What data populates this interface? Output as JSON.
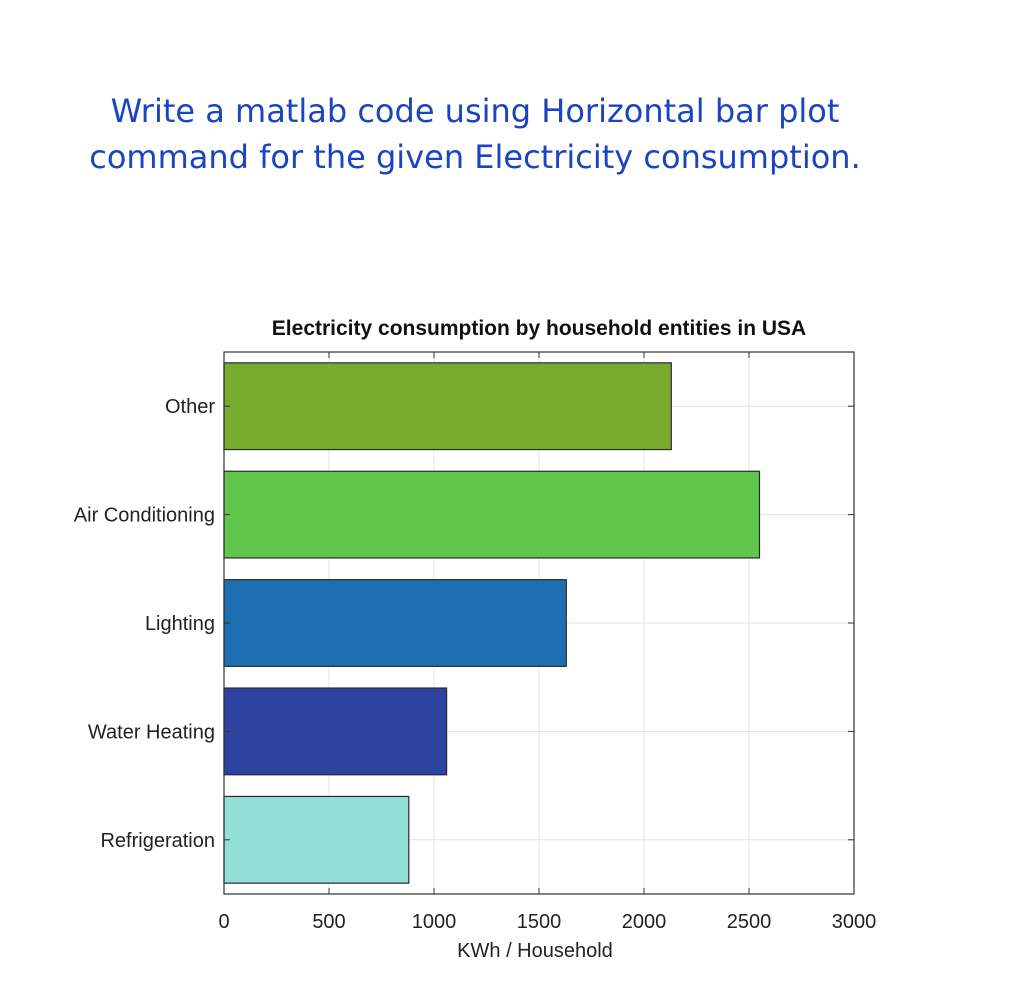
{
  "question": {
    "line1": "Write a matlab code using Horizontal bar plot",
    "line2": "command for the given Electricity consumption."
  },
  "chart_data": {
    "type": "bar",
    "orientation": "horizontal",
    "title": "Electricity consumption by household entities in USA",
    "xlabel": "KWh / Household",
    "ylabel": "",
    "categories": [
      "Refrigeration",
      "Water Heating",
      "Lighting",
      "Air Conditioning",
      "Other"
    ],
    "values": [
      880,
      1060,
      1630,
      2550,
      2130
    ],
    "colors": [
      "#92e0d8",
      "#2e43a1",
      "#1d6fb2",
      "#60c74c",
      "#79ab30"
    ],
    "xlim": [
      0,
      3000
    ],
    "xticks": [
      0,
      500,
      1000,
      1500,
      2000,
      2500,
      3000
    ],
    "grid": true,
    "legend": "none"
  }
}
